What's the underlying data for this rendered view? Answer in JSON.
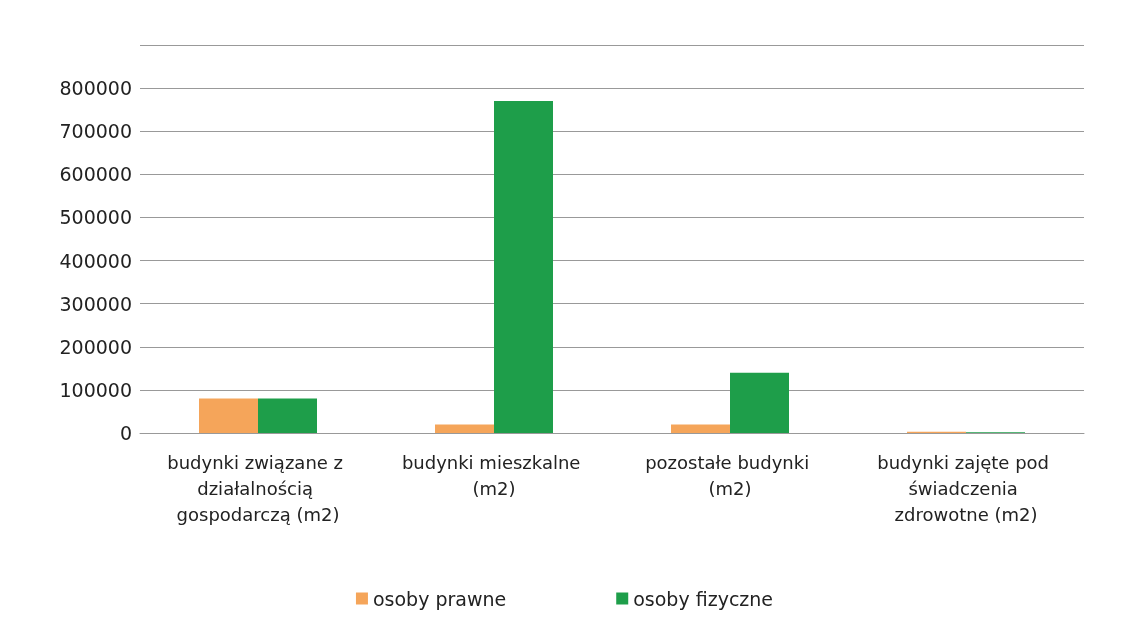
{
  "chart_data": {
    "type": "bar",
    "categories": [
      "budynki związane z działalnością gospodarczą (m2)",
      "budynki mieszkalne (m2)",
      "pozostałe budynki (m2)",
      "budynki zajęte pod świadczenia zdrowotne (m2)"
    ],
    "series": [
      {
        "name": "osoby prawne",
        "color": "#f5a55a",
        "values": [
          80000,
          20000,
          20000,
          3000
        ]
      },
      {
        "name": "osoby fizyczne",
        "color": "#1e9e4a",
        "values": [
          80000,
          770000,
          140000,
          2000
        ]
      }
    ],
    "ylim": [
      0,
      900000
    ],
    "yticks": [
      0,
      100000,
      200000,
      300000,
      400000,
      500000,
      600000,
      700000,
      800000,
      {
        "value": 900000,
        "label": null
      }
    ],
    "grid": "y",
    "legend": "bottom"
  }
}
